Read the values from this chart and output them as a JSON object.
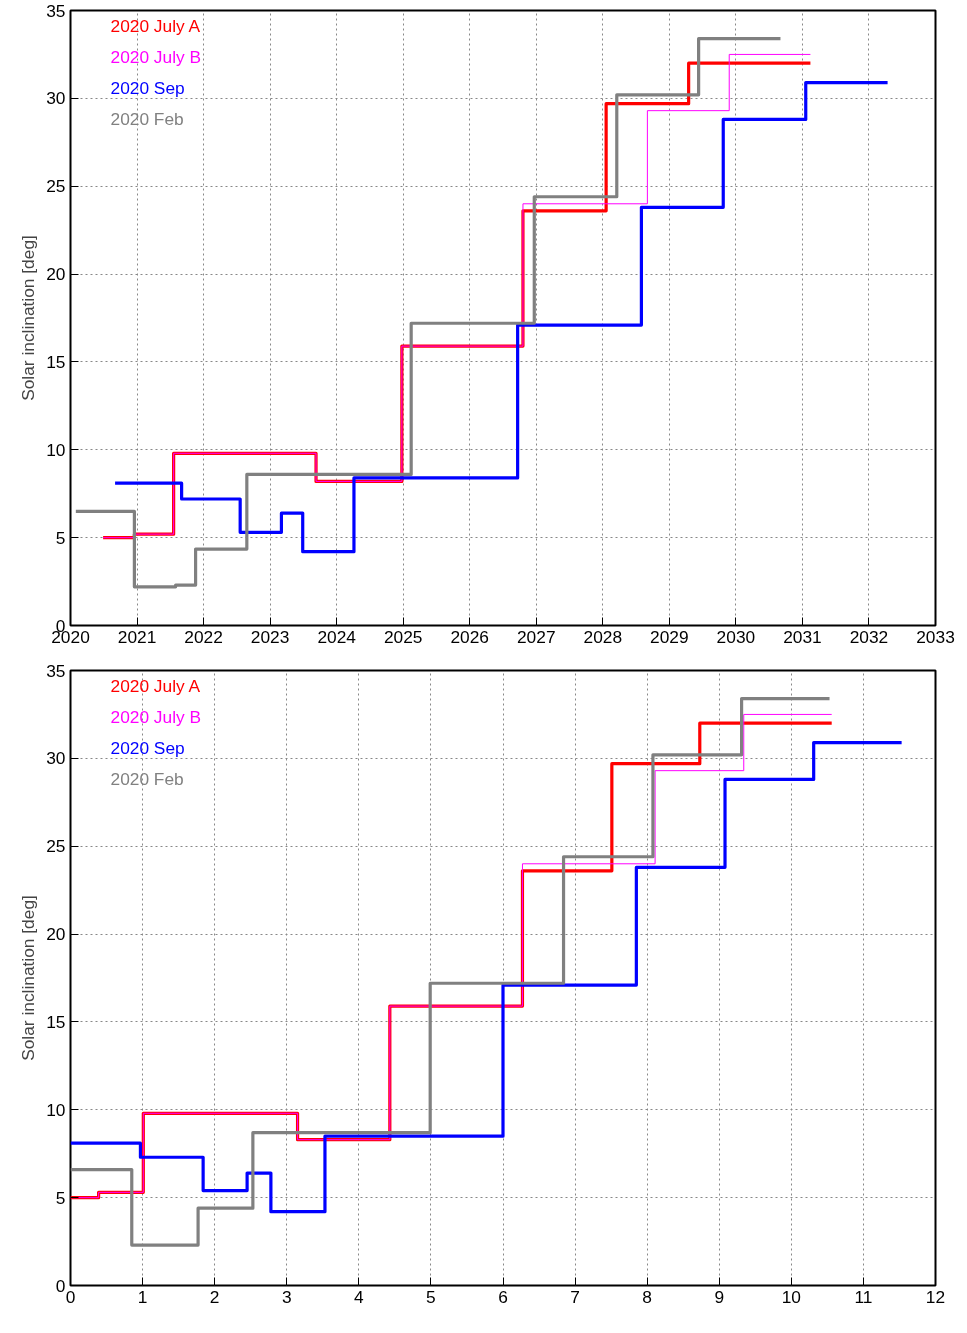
{
  "chart_data": [
    {
      "type": "step",
      "ylabel": "Solar inclination [deg]",
      "xlim": [
        2020,
        2033
      ],
      "xticks": [
        2020,
        2021,
        2022,
        2023,
        2024,
        2025,
        2026,
        2027,
        2028,
        2029,
        2030,
        2031,
        2032,
        2033
      ],
      "ylim": [
        0,
        35
      ],
      "yticks": [
        0,
        5,
        10,
        15,
        20,
        25,
        30,
        35
      ],
      "grid": true,
      "legend": "top left",
      "line_style": "solid",
      "marker": "none",
      "series": [
        {
          "name": "2020 July A",
          "color": "#ff0000",
          "x": [
            2020.49,
            2020.96,
            2021.55,
            2023.69,
            2024.98,
            2026.8,
            2028.05,
            2029.29,
            2031.12
          ],
          "values": [
            5.0,
            5.2,
            9.8,
            8.2,
            15.9,
            23.6,
            29.7,
            32.0,
            32.0
          ]
        },
        {
          "name": "2020 July B",
          "color": "#ff00ff",
          "x": [
            2020.49,
            2020.96,
            2021.55,
            2023.69,
            2024.98,
            2026.8,
            2028.67,
            2029.9,
            2031.12
          ],
          "values": [
            5.0,
            5.2,
            9.8,
            8.2,
            15.9,
            24.0,
            29.3,
            32.5,
            32.5
          ]
        },
        {
          "name": "2020 Sep",
          "color": "#0000ff",
          "x": [
            2020.67,
            2021.67,
            2022.55,
            2023.17,
            2023.49,
            2024.26,
            2026.72,
            2028.58,
            2029.81,
            2031.05,
            2032.28
          ],
          "values": [
            8.1,
            7.2,
            5.3,
            6.4,
            4.2,
            8.4,
            17.1,
            23.8,
            28.8,
            30.9,
            30.9
          ]
        },
        {
          "name": "2020 Feb",
          "color": "#808080",
          "x": [
            2020.08,
            2020.96,
            2021.58,
            2021.88,
            2022.65,
            2025.12,
            2026.97,
            2028.21,
            2029.44,
            2030.67
          ],
          "values": [
            6.5,
            2.2,
            2.3,
            4.35,
            8.6,
            17.2,
            24.4,
            30.2,
            33.4,
            33.4
          ]
        }
      ]
    },
    {
      "type": "step",
      "ylabel": "Solar inclination [deg]",
      "xlim": [
        0,
        12
      ],
      "xticks": [
        0,
        1,
        2,
        3,
        4,
        5,
        6,
        7,
        8,
        9,
        10,
        11,
        12
      ],
      "ylim": [
        0,
        35
      ],
      "yticks": [
        0,
        5,
        10,
        15,
        20,
        25,
        30,
        35
      ],
      "grid": true,
      "legend": "top left",
      "line_style": "solid",
      "marker": "none",
      "series": [
        {
          "name": "2020 July A",
          "color": "#ff0000",
          "x": [
            0,
            0.39,
            1.01,
            3.15,
            4.43,
            6.27,
            7.51,
            8.73,
            10.56
          ],
          "values": [
            5.0,
            5.3,
            9.8,
            8.3,
            15.9,
            23.6,
            29.7,
            32.0,
            32.0
          ]
        },
        {
          "name": "2020 July B",
          "color": "#ff00ff",
          "x": [
            0,
            0.39,
            1.01,
            3.15,
            4.43,
            6.27,
            8.11,
            9.34,
            10.56
          ],
          "values": [
            5.0,
            5.3,
            9.8,
            8.3,
            15.9,
            24.0,
            29.3,
            32.5,
            32.5
          ]
        },
        {
          "name": "2020 Sep",
          "color": "#0000ff",
          "x": [
            0,
            0.97,
            1.84,
            2.45,
            2.78,
            3.53,
            6.0,
            7.85,
            9.08,
            10.31,
            11.53
          ],
          "values": [
            8.1,
            7.3,
            5.4,
            6.4,
            4.2,
            8.5,
            17.1,
            23.8,
            28.8,
            30.9,
            30.9
          ]
        },
        {
          "name": "2020 Feb",
          "color": "#808080",
          "x": [
            0,
            0.85,
            1.47,
            1.77,
            2.53,
            4.99,
            6.84,
            8.08,
            9.31,
            10.53
          ],
          "values": [
            6.6,
            2.3,
            2.3,
            4.4,
            8.7,
            17.2,
            24.4,
            30.2,
            33.4,
            33.4
          ]
        }
      ]
    }
  ]
}
